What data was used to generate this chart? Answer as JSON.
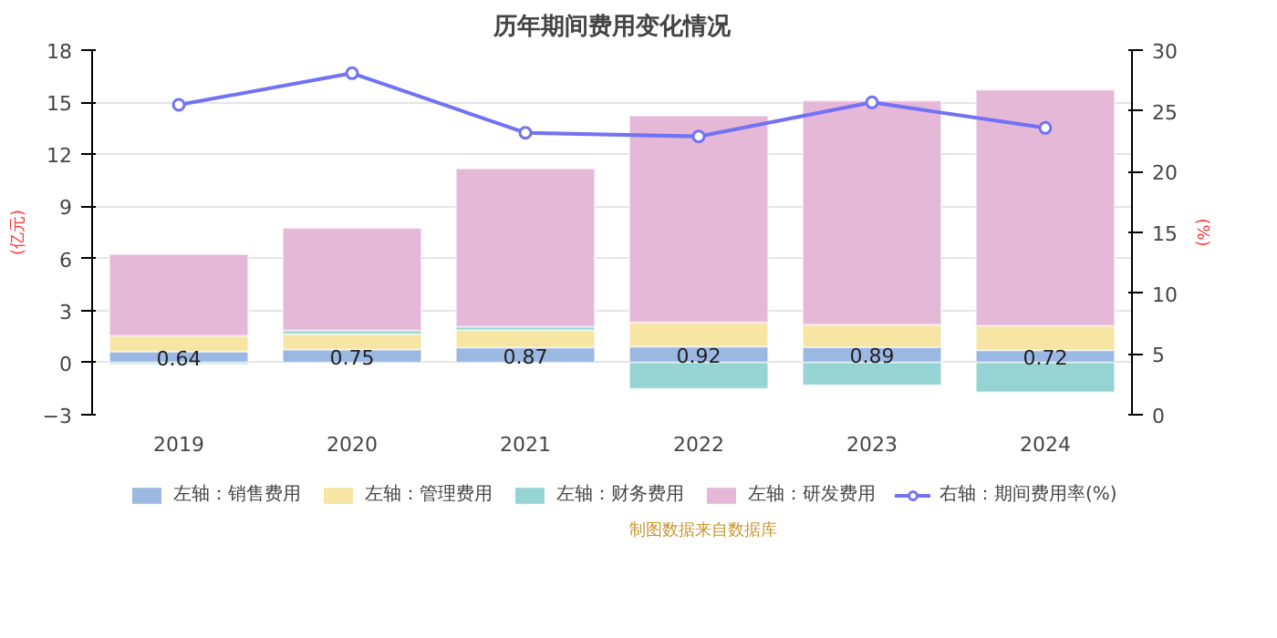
{
  "chart_data": {
    "type": "bar",
    "title": "历年期间费用变化情况",
    "ylabel": "(亿元)",
    "y2label": "(%)",
    "categories": [
      "2019",
      "2020",
      "2021",
      "2022",
      "2023",
      "2024"
    ],
    "stacked": true,
    "series": [
      {
        "name": "左轴：销售费用",
        "color": "#9bb8e3",
        "values": [
          0.64,
          0.75,
          0.87,
          0.92,
          0.89,
          0.72
        ],
        "value_labels": [
          "0.64",
          "0.75",
          "0.87",
          "0.92",
          "0.89",
          "0.72"
        ]
      },
      {
        "name": "左轴：管理费用",
        "color": "#f7e5a4",
        "values": [
          0.9,
          0.9,
          1.0,
          1.4,
          1.3,
          1.4
        ]
      },
      {
        "name": "左轴：财务费用",
        "color": "#96d4d3",
        "values": [
          -0.1,
          0.2,
          0.2,
          -1.5,
          -1.3,
          -1.7
        ]
      },
      {
        "name": "左轴：研发费用",
        "color": "#e6b8d8",
        "values": [
          4.7,
          5.9,
          9.1,
          11.9,
          12.9,
          13.6
        ]
      },
      {
        "name": "右轴：期间费用率(%)",
        "type": "line",
        "axis": "y2",
        "marker": "circle",
        "color": "#7272f5",
        "values": [
          25.5,
          28.1,
          23.2,
          22.9,
          25.7,
          23.6
        ]
      }
    ],
    "ylim": [
      -3,
      18
    ],
    "yticks": [
      -3,
      0,
      3,
      6,
      9,
      12,
      15,
      18
    ],
    "y2lim": [
      0,
      30
    ],
    "y2ticks": [
      0,
      5,
      10,
      15,
      20,
      25,
      30
    ],
    "grid": "y",
    "legend": "bottom",
    "annotations": [
      "制图数据来自数据库"
    ]
  }
}
